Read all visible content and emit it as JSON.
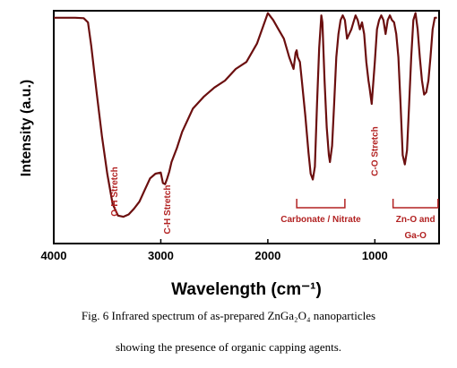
{
  "chart_data": {
    "type": "line",
    "xlabel": "Wavelength (cm⁻¹)",
    "ylabel": "Intensity (a.u.)",
    "xlim": [
      4000,
      400
    ],
    "ylim": [
      0,
      100
    ],
    "x_reversed": true,
    "y_ticks_shown": false,
    "grid": false,
    "line_color": "#6b0f0f",
    "x_ticks": [
      {
        "value": 4000,
        "label": "4000"
      },
      {
        "value": 3000,
        "label": "3000"
      },
      {
        "value": 2000,
        "label": "2000"
      },
      {
        "value": 1000,
        "label": "1000"
      }
    ],
    "series": [
      {
        "x": [
          4000,
          3800,
          3720,
          3680,
          3650,
          3600,
          3550,
          3500,
          3450,
          3400,
          3350,
          3300,
          3250,
          3200,
          3150,
          3100,
          3050,
          3000,
          2980,
          2960,
          2940,
          2920,
          2900,
          2850,
          2800,
          2700,
          2600,
          2500,
          2400,
          2300,
          2200,
          2100,
          2000,
          1950,
          1900,
          1850,
          1800,
          1760,
          1740,
          1730,
          1720,
          1700,
          1680,
          1650,
          1620,
          1600,
          1580,
          1560,
          1540,
          1520,
          1500,
          1490,
          1470,
          1450,
          1430,
          1420,
          1400,
          1380,
          1360,
          1340,
          1320,
          1300,
          1280,
          1260,
          1240,
          1220,
          1200,
          1180,
          1160,
          1140,
          1120,
          1100,
          1080,
          1060,
          1050,
          1030,
          1000,
          980,
          960,
          940,
          920,
          900,
          880,
          860,
          840,
          820,
          800,
          780,
          760,
          740,
          720,
          700,
          680,
          660,
          640,
          620,
          600,
          580,
          560,
          540,
          520,
          500,
          480,
          460,
          440,
          420
        ],
        "y": [
          97,
          97,
          96.8,
          95,
          85,
          65,
          46,
          30,
          17,
          12,
          11.5,
          12.5,
          15,
          18,
          23,
          28,
          30,
          30.5,
          26,
          25.5,
          28,
          31,
          35,
          41,
          48,
          58,
          63,
          67,
          70,
          75,
          78,
          86,
          99,
          96,
          92,
          88,
          80,
          75,
          82,
          83,
          80,
          78,
          69,
          55,
          39,
          30,
          27.5,
          33,
          60,
          84,
          98,
          95,
          70,
          50,
          38,
          35,
          42,
          60,
          80,
          90,
          96,
          98,
          96,
          88,
          90,
          92,
          95,
          98,
          96,
          92,
          95,
          90,
          78,
          70,
          67,
          60,
          78,
          92,
          96,
          98,
          96,
          90,
          96,
          98,
          96,
          95,
          90,
          80,
          60,
          38,
          34,
          40,
          60,
          80,
          96,
          99,
          92,
          80,
          70,
          64,
          65,
          70,
          80,
          92,
          97,
          97
        ]
      }
    ],
    "annotations": [
      {
        "text": "O-H Stretch",
        "x": 3380
      },
      {
        "text": "C-H Stretch",
        "x": 2945
      },
      {
        "text": "Carbonate / Nitrate",
        "x_range": [
          1730,
          1280
        ]
      },
      {
        "text": "C-O Stretch",
        "x": 1005
      },
      {
        "text": "Zn-O and",
        "x_range": [
          830,
          410
        ]
      },
      {
        "text": "Ga-O",
        "x_range": [
          830,
          410
        ]
      }
    ]
  },
  "caption": {
    "line1": "Fig. 6 Infrared  spectrum  of as-prepared ZnGa₂O₄ nanoparticles",
    "line2": "showing  the presence of organic  capping  agents."
  }
}
